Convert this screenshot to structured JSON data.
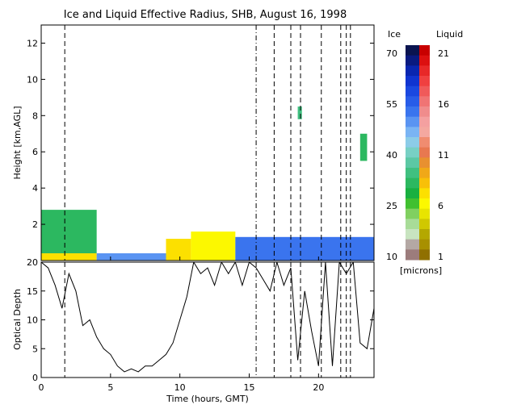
{
  "title": "Ice and Liquid Effective Radius, SHB, August 16, 1998",
  "chart_data": [
    {
      "type": "heatmap",
      "title": "Ice and Liquid Effective Radius, SHB, August 16, 1998",
      "ylabel": "Height [km,AGL]",
      "xlim": [
        0,
        24
      ],
      "ylim": [
        0,
        13
      ],
      "yticks": [
        2,
        4,
        6,
        8,
        10,
        12
      ],
      "cloud_regions": [
        {
          "x": [
            0,
            4
          ],
          "y": [
            0.4,
            2.8
          ],
          "phase": "ice",
          "value_microns": 32
        },
        {
          "x": [
            0,
            4
          ],
          "y": [
            0.0,
            0.4
          ],
          "phase": "liquid",
          "value_microns": 7
        },
        {
          "x": [
            4,
            9
          ],
          "y": [
            0.0,
            0.4
          ],
          "phase": "ice",
          "value_microns": 50
        },
        {
          "x": [
            9,
            10.8
          ],
          "y": [
            0.0,
            1.2
          ],
          "phase": "liquid",
          "value_microns": 7
        },
        {
          "x": [
            10.8,
            14
          ],
          "y": [
            0.0,
            1.6
          ],
          "phase": "liquid",
          "value_microns": 6
        },
        {
          "x": [
            14,
            24
          ],
          "y": [
            0.0,
            1.3
          ],
          "phase": "ice",
          "value_microns": 52
        },
        {
          "x": [
            18.5,
            18.8
          ],
          "y": [
            7.8,
            8.5
          ],
          "phase": "ice",
          "value_microns": 35
        },
        {
          "x": [
            23,
            23.5
          ],
          "y": [
            5.5,
            7.0
          ],
          "phase": "ice",
          "value_microns": 30
        }
      ]
    },
    {
      "type": "line",
      "ylabel": "Optical Depth",
      "xlabel": "Time (hours, GMT)",
      "xlim": [
        0,
        24
      ],
      "ylim": [
        0,
        20
      ],
      "xticks": [
        0,
        5,
        10,
        15,
        20
      ],
      "yticks": [
        0,
        5,
        10,
        15,
        20
      ],
      "x": [
        0,
        0.5,
        1,
        1.5,
        2,
        2.5,
        3,
        3.5,
        4,
        4.5,
        5,
        5.5,
        6,
        6.5,
        7,
        7.5,
        8,
        8.5,
        9,
        9.5,
        10,
        10.5,
        11,
        11.5,
        12,
        12.5,
        13,
        13.5,
        14,
        14.5,
        15,
        15.5,
        16,
        16.5,
        17,
        17.5,
        18,
        18.5,
        19,
        19.5,
        20,
        20.5,
        21,
        21.5,
        22,
        22.5,
        23,
        23.5,
        24
      ],
      "y": [
        20,
        19,
        16,
        12,
        18,
        15,
        9,
        10,
        7,
        5,
        4,
        2,
        1,
        1.5,
        1,
        2,
        2,
        3,
        4,
        6,
        10,
        14,
        20,
        18,
        19,
        16,
        20,
        18,
        20,
        16,
        20,
        19,
        17,
        15,
        20,
        16,
        19,
        3,
        15,
        8,
        2,
        20,
        2,
        20,
        18,
        20,
        6,
        5,
        12
      ]
    }
  ],
  "vertical_markers": {
    "dashed": [
      1.7,
      16.8,
      18.0,
      18.7,
      20.2,
      21.6,
      22.0,
      22.3
    ],
    "dashdot": [
      15.5
    ]
  },
  "colorbar": {
    "ice_label": "Ice",
    "liquid_label": "Liquid",
    "ice_ticks": [
      "70",
      "55",
      "40",
      "25",
      "10"
    ],
    "liquid_ticks": [
      "21",
      "16",
      "11",
      "6",
      "1"
    ],
    "units": "[microns]",
    "ice_colors": [
      "#0a1450",
      "#0a1a80",
      "#0a26b0",
      "#1034d0",
      "#1a48e0",
      "#285ce8",
      "#3a74ee",
      "#5a94f2",
      "#7ab4f4",
      "#8ccce8",
      "#78d0c4",
      "#5cc8a4",
      "#40c080",
      "#2cb860",
      "#18b040",
      "#40c030",
      "#80d060",
      "#a8dc98",
      "#c8e4c0",
      "#b4a8a4",
      "#9c7c7c"
    ],
    "liquid_colors": [
      "#c80000",
      "#dc1010",
      "#e82828",
      "#f04040",
      "#f05a5a",
      "#f07474",
      "#f08c8c",
      "#f4a0a0",
      "#f4a8a0",
      "#f08c70",
      "#e87850",
      "#e89030",
      "#f0a818",
      "#f8c008",
      "#fce000",
      "#fcf800",
      "#e8e400",
      "#d0c800",
      "#b4a800",
      "#a89000",
      "#907000"
    ]
  }
}
